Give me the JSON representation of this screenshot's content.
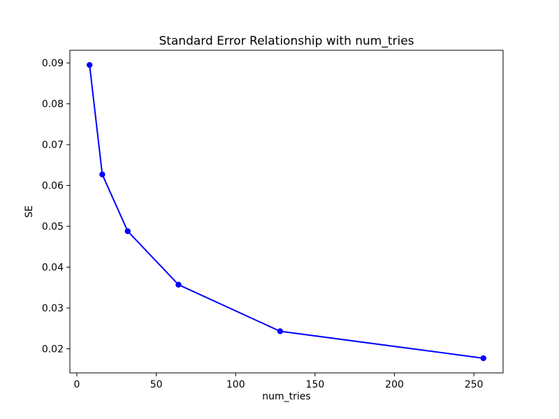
{
  "figure": {
    "background_color": "#ffffff"
  },
  "chart_data": {
    "type": "line",
    "title": "Standard Error Relationship with num_tries",
    "xlabel": "num_tries",
    "ylabel": "SE",
    "x": [
      8,
      16,
      32,
      64,
      128,
      256
    ],
    "series": [
      {
        "name": "SE",
        "values": [
          0.0895,
          0.0627,
          0.0488,
          0.0357,
          0.0243,
          0.0177
        ]
      }
    ],
    "line_color": "#0000ff",
    "marker": "circle",
    "marker_color": "#0000ff",
    "axis_color": "#000000",
    "text_color": "#000000",
    "xlim": [
      -4.4,
      268.4
    ],
    "ylim": [
      0.0141,
      0.0931
    ],
    "xticks": [
      0,
      50,
      100,
      150,
      200,
      250
    ],
    "yticks": [
      0.02,
      0.03,
      0.04,
      0.05,
      0.06,
      0.07,
      0.08,
      0.09
    ],
    "y_tick_decimals": 2,
    "grid": false,
    "legend_position": "none"
  }
}
